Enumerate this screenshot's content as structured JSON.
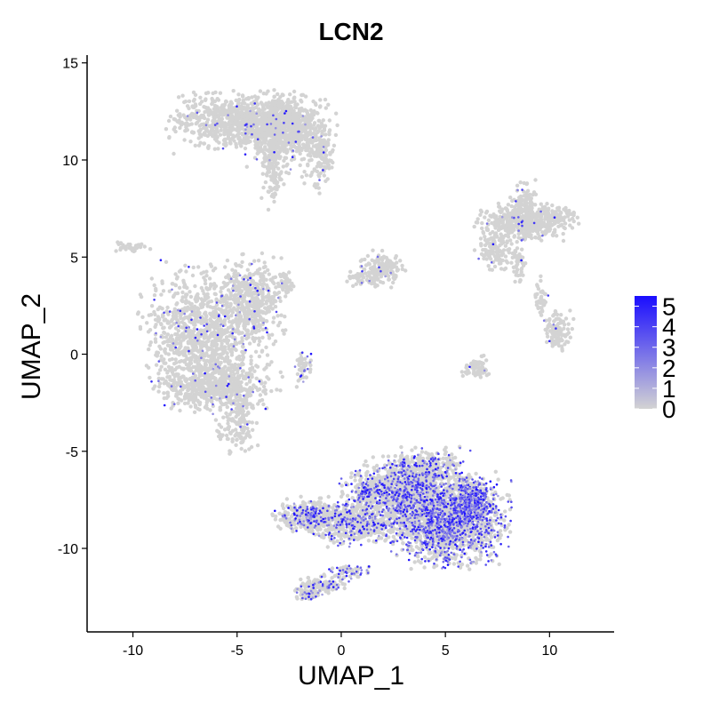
{
  "chart_data": {
    "type": "scatter",
    "title": "LCN2",
    "xlabel": "UMAP_1",
    "ylabel": "UMAP_2",
    "xlim": [
      -12.2,
      13.1
    ],
    "ylim": [
      -14.3,
      15.4
    ],
    "x_ticks": [
      -10,
      -5,
      0,
      5,
      10
    ],
    "x_tick_labels": [
      "-10",
      "-5",
      "0",
      "5",
      "10"
    ],
    "y_ticks": [
      -10,
      -5,
      0,
      5,
      10,
      15
    ],
    "y_tick_labels": [
      "-10",
      "-5",
      "0",
      "5",
      "10",
      "15"
    ],
    "grid": false,
    "legend": {
      "placement": "right",
      "type": "colorbar",
      "labels": [
        "5",
        "4",
        "3",
        "2",
        "1",
        "0"
      ],
      "range": [
        0,
        5.5
      ]
    },
    "colors": {
      "low": "#d3d3d3",
      "high": "#1a0dff"
    },
    "clusters": [
      {
        "cx": -4.8,
        "cy": 12.0,
        "rx": 2.6,
        "ry": 1.2,
        "n": 900,
        "expr": 0.03
      },
      {
        "cx": -3.0,
        "cy": 11.2,
        "rx": 1.2,
        "ry": 1.8,
        "n": 300,
        "expr": 0.03
      },
      {
        "cx": -1.0,
        "cy": 10.3,
        "rx": 0.6,
        "ry": 1.5,
        "n": 140,
        "expr": 0.03
      },
      {
        "cx": -3.3,
        "cy": 9.4,
        "rx": 0.4,
        "ry": 1.4,
        "n": 80,
        "expr": 0.02
      },
      {
        "cx": -2.4,
        "cy": 11.6,
        "rx": 1.6,
        "ry": 1.3,
        "n": 350,
        "expr": 0.03
      },
      {
        "cx": -6.6,
        "cy": 1.0,
        "rx": 2.3,
        "ry": 2.8,
        "n": 1100,
        "expr": 0.05
      },
      {
        "cx": -4.2,
        "cy": 2.8,
        "rx": 1.2,
        "ry": 1.8,
        "n": 400,
        "expr": 0.05
      },
      {
        "cx": -6.0,
        "cy": -1.6,
        "rx": 2.3,
        "ry": 1.1,
        "n": 500,
        "expr": 0.05
      },
      {
        "cx": -5.0,
        "cy": -3.6,
        "rx": 0.8,
        "ry": 1.3,
        "n": 140,
        "expr": 0.02
      },
      {
        "cx": -1.9,
        "cy": -0.6,
        "rx": 0.35,
        "ry": 0.8,
        "n": 50,
        "expr": 0.25
      },
      {
        "cx": -2.6,
        "cy": 3.6,
        "rx": 0.25,
        "ry": 0.6,
        "n": 40,
        "expr": 0.03
      },
      {
        "cx": -10.0,
        "cy": 5.5,
        "rx": 0.9,
        "ry": 0.2,
        "n": 35,
        "expr": 0.02
      },
      {
        "cx": 2.0,
        "cy": 4.4,
        "rx": 0.8,
        "ry": 0.7,
        "n": 160,
        "expr": 0.03
      },
      {
        "cx": 1.0,
        "cy": 3.9,
        "rx": 0.7,
        "ry": 0.3,
        "n": 40,
        "expr": 0.03
      },
      {
        "cx": 8.6,
        "cy": 6.7,
        "rx": 1.6,
        "ry": 0.8,
        "n": 400,
        "expr": 0.02
      },
      {
        "cx": 8.8,
        "cy": 7.7,
        "rx": 0.5,
        "ry": 0.9,
        "n": 100,
        "expr": 0.02
      },
      {
        "cx": 10.2,
        "cy": 7.0,
        "rx": 0.9,
        "ry": 0.7,
        "n": 120,
        "expr": 0.02
      },
      {
        "cx": 7.4,
        "cy": 5.3,
        "rx": 0.8,
        "ry": 0.8,
        "n": 110,
        "expr": 0.02
      },
      {
        "cx": 8.6,
        "cy": 4.6,
        "rx": 0.3,
        "ry": 0.9,
        "n": 40,
        "expr": 0.02
      },
      {
        "cx": 10.4,
        "cy": 1.2,
        "rx": 0.55,
        "ry": 0.8,
        "n": 110,
        "expr": 0.02
      },
      {
        "cx": 9.6,
        "cy": 2.8,
        "rx": 0.3,
        "ry": 1.1,
        "n": 40,
        "expr": 0.02
      },
      {
        "cx": 6.5,
        "cy": -0.7,
        "rx": 0.55,
        "ry": 0.45,
        "n": 70,
        "expr": 0.03
      },
      {
        "cx": 5.0,
        "cy": -8.6,
        "rx": 2.3,
        "ry": 1.8,
        "n": 1800,
        "expr": 0.42
      },
      {
        "cx": 2.8,
        "cy": -7.2,
        "rx": 2.1,
        "ry": 1.4,
        "n": 1100,
        "expr": 0.3
      },
      {
        "cx": 6.3,
        "cy": -7.6,
        "rx": 0.8,
        "ry": 1.0,
        "n": 400,
        "expr": 0.55
      },
      {
        "cx": 4.0,
        "cy": -5.9,
        "rx": 1.6,
        "ry": 0.8,
        "n": 300,
        "expr": 0.28
      },
      {
        "cx": 0.5,
        "cy": -8.7,
        "rx": 1.6,
        "ry": 0.9,
        "n": 500,
        "expr": 0.25
      },
      {
        "cx": -1.6,
        "cy": -8.3,
        "rx": 1.3,
        "ry": 0.7,
        "n": 350,
        "expr": 0.3
      },
      {
        "cx": 1.2,
        "cy": -7.0,
        "rx": 0.4,
        "ry": 0.4,
        "n": 60,
        "expr": 0.45
      },
      {
        "cx": -1.0,
        "cy": -11.9,
        "rx": 1.0,
        "ry": 0.4,
        "n": 120,
        "expr": 0.3
      },
      {
        "cx": 0.3,
        "cy": -11.2,
        "rx": 0.8,
        "ry": 0.35,
        "n": 70,
        "expr": 0.3
      },
      {
        "cx": -1.6,
        "cy": -12.3,
        "rx": 0.5,
        "ry": 0.3,
        "n": 60,
        "expr": 0.25
      }
    ]
  }
}
